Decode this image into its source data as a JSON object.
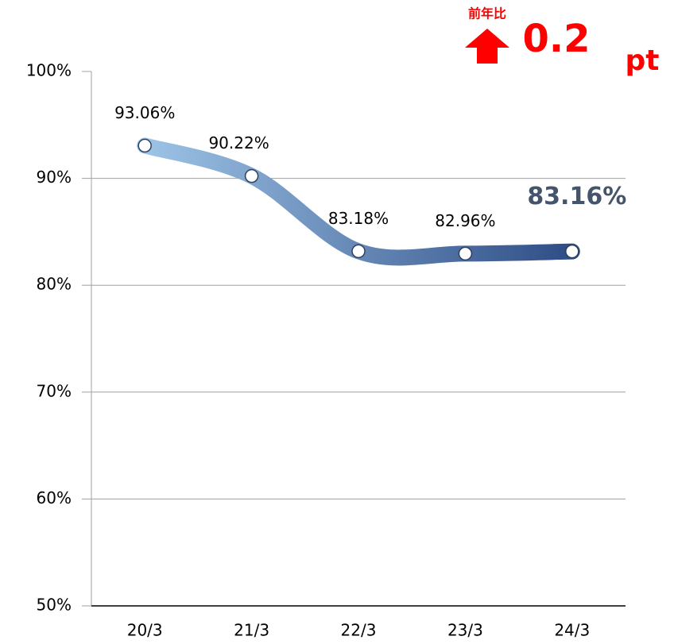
{
  "chart_data": {
    "type": "line",
    "categories": [
      "20/3",
      "21/3",
      "22/3",
      "23/3",
      "24/3"
    ],
    "series": [
      {
        "name": null,
        "color": [
          "#9dc3e6",
          "#2e4d86"
        ],
        "values": [
          93.06,
          90.22,
          83.18,
          82.96,
          83.16
        ],
        "value_labels": [
          "93.06%",
          "90.22%",
          "83.18%",
          "82.96%",
          "83.16%"
        ]
      }
    ],
    "ylim": [
      50,
      100
    ],
    "yticks": [
      {
        "value": 50,
        "label": "50%"
      },
      {
        "value": 60,
        "label": "60%"
      },
      {
        "value": 70,
        "label": "70%"
      },
      {
        "value": 80,
        "label": "80%"
      },
      {
        "value": 90,
        "label": "90%"
      },
      {
        "value": 100,
        "label": "100%"
      }
    ],
    "grid": true,
    "annotations": [
      "前年比",
      "0.2",
      "pt"
    ]
  }
}
